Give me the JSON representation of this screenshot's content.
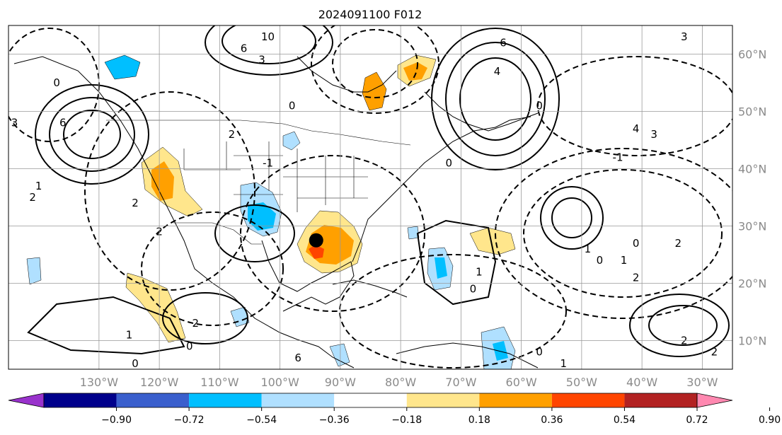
{
  "map": {
    "title": "2024091100 F012",
    "projection": "Plate Carree",
    "extent": {
      "lon_min": -145,
      "lon_max": -25,
      "lat_min": 5,
      "lat_max": 65
    },
    "grid": true,
    "lon_ticks": [
      {
        "lon": -130,
        "label": "130°W"
      },
      {
        "lon": -120,
        "label": "120°W"
      },
      {
        "lon": -110,
        "label": "110°W"
      },
      {
        "lon": -100,
        "label": "100°W"
      },
      {
        "lon": -90,
        "label": "90°W"
      },
      {
        "lon": -80,
        "label": "80°W"
      },
      {
        "lon": -70,
        "label": "70°W"
      },
      {
        "lon": -60,
        "label": "60°W"
      },
      {
        "lon": -50,
        "label": "50°W"
      },
      {
        "lon": -40,
        "label": "40°W"
      },
      {
        "lon": -30,
        "label": "30°W"
      }
    ],
    "lat_ticks": [
      {
        "lat": 60,
        "label": "60°N"
      },
      {
        "lat": 50,
        "label": "50°N"
      },
      {
        "lat": 40,
        "label": "40°N"
      },
      {
        "lat": 30,
        "label": "30°N"
      },
      {
        "lat": 20,
        "label": "20°N"
      },
      {
        "lat": 10,
        "label": "10°N"
      }
    ],
    "storm_marker": {
      "lon": -94,
      "lat": 27.5,
      "color": "#000000"
    },
    "contour_labels": [
      {
        "text": "10",
        "lon": -102,
        "lat": 63
      },
      {
        "text": "6",
        "lon": -106,
        "lat": 61
      },
      {
        "text": "3",
        "lon": -103,
        "lat": 59
      },
      {
        "text": "6",
        "lon": -63,
        "lat": 62
      },
      {
        "text": "6",
        "lon": -136,
        "lat": 48
      },
      {
        "text": "3",
        "lon": -144,
        "lat": 48
      },
      {
        "text": "4",
        "lon": -64,
        "lat": 57
      },
      {
        "text": "0",
        "lon": -57,
        "lat": 51
      },
      {
        "text": "4",
        "lon": -41,
        "lat": 47
      },
      {
        "text": "3",
        "lon": -38,
        "lat": 46
      },
      {
        "text": "3",
        "lon": -33,
        "lat": 63
      },
      {
        "text": "-1",
        "lon": -44,
        "lat": 42
      },
      {
        "text": "0",
        "lon": -137,
        "lat": 55
      },
      {
        "text": "0",
        "lon": -98,
        "lat": 51
      },
      {
        "text": "2",
        "lon": -108,
        "lat": 46
      },
      {
        "text": "-1",
        "lon": -102,
        "lat": 41
      },
      {
        "text": "0",
        "lon": -72,
        "lat": 41
      },
      {
        "text": "1",
        "lon": -140,
        "lat": 37
      },
      {
        "text": "2",
        "lon": -141,
        "lat": 35
      },
      {
        "text": "2",
        "lon": -124,
        "lat": 34
      },
      {
        "text": "2",
        "lon": -120,
        "lat": 29
      },
      {
        "text": "1",
        "lon": -49,
        "lat": 26
      },
      {
        "text": "0",
        "lon": -47,
        "lat": 24
      },
      {
        "text": "0",
        "lon": -41,
        "lat": 27
      },
      {
        "text": "1",
        "lon": -43,
        "lat": 24
      },
      {
        "text": "2",
        "lon": -34,
        "lat": 27
      },
      {
        "text": "2",
        "lon": -41,
        "lat": 21
      },
      {
        "text": "0",
        "lon": -68,
        "lat": 19
      },
      {
        "text": "1",
        "lon": -67,
        "lat": 22
      },
      {
        "text": "1",
        "lon": -125,
        "lat": 11
      },
      {
        "text": "2",
        "lon": -114,
        "lat": 13
      },
      {
        "text": "0",
        "lon": -115,
        "lat": 9
      },
      {
        "text": "0",
        "lon": -124,
        "lat": 6
      },
      {
        "text": "6",
        "lon": -97,
        "lat": 7
      },
      {
        "text": "0",
        "lon": -57,
        "lat": 8
      },
      {
        "text": "1",
        "lon": -53,
        "lat": 6
      },
      {
        "text": "2",
        "lon": -33,
        "lat": 10
      },
      {
        "text": "2",
        "lon": -28,
        "lat": 8
      }
    ]
  },
  "colorbar": {
    "ticks": [
      "−0.90",
      "−0.72",
      "−0.54",
      "−0.36",
      "−0.18",
      "0.18",
      "0.36",
      "0.54",
      "0.72",
      "0.90"
    ],
    "colors": [
      "#9932cc",
      "#00008b",
      "#3a5fcd",
      "#00bfff",
      "#b0e0ff",
      "#ffffff",
      "#ffe68c",
      "#ffa000",
      "#ff4500",
      "#b22222",
      "#ff88b0"
    ]
  }
}
